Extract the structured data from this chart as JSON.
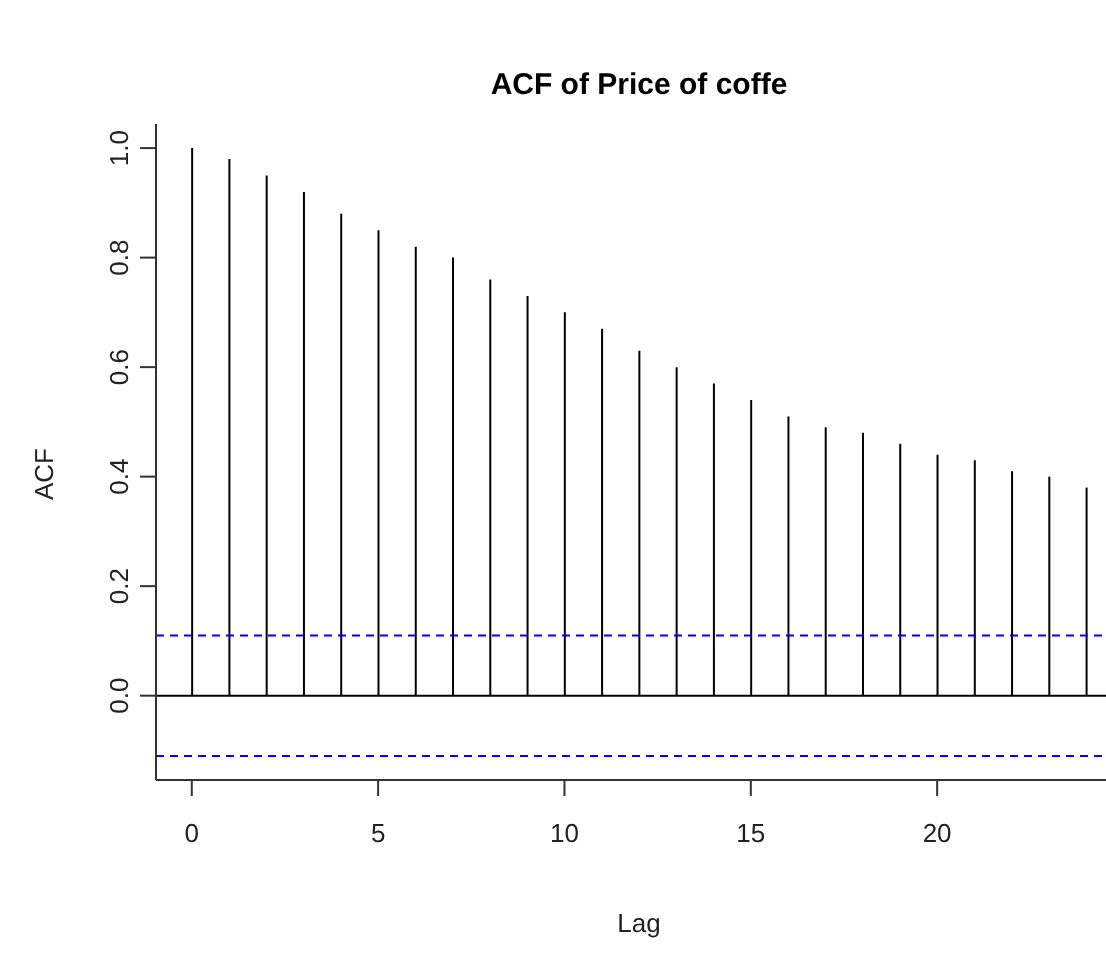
{
  "chart_data": {
    "type": "bar",
    "title": "ACF of Price of coffe",
    "xlabel": "Lag",
    "ylabel": "ACF",
    "x": [
      0,
      1,
      2,
      3,
      4,
      5,
      6,
      7,
      8,
      9,
      10,
      11,
      12,
      13,
      14,
      15,
      16,
      17,
      18,
      19,
      20,
      21,
      22,
      23,
      24
    ],
    "series": [
      {
        "color": "#000000",
        "values": [
          1.0,
          0.98,
          0.95,
          0.92,
          0.88,
          0.85,
          0.82,
          0.8,
          0.76,
          0.73,
          0.7,
          0.67,
          0.63,
          0.6,
          0.57,
          0.54,
          0.51,
          0.49,
          0.48,
          0.46,
          0.44,
          0.43,
          0.41,
          0.4,
          0.38
        ]
      }
    ],
    "xlim": [
      -0.96,
      24.96
    ],
    "xticks": [
      0,
      5,
      10,
      15,
      20
    ],
    "ylim": [
      -0.154,
      1.044
    ],
    "yticks": [
      {
        "value": 0,
        "label": "0.0"
      },
      {
        "value": 0.2,
        "label": "0.2"
      },
      {
        "value": 0.4,
        "label": "0.4"
      },
      {
        "value": 0.6,
        "label": "0.6"
      },
      {
        "value": 0.8,
        "label": "0.8"
      },
      {
        "value": 1,
        "label": "1.0"
      }
    ],
    "ref_lines": [
      {
        "axis": "y",
        "value": 0,
        "color": "#000000",
        "line_style": "solid"
      },
      {
        "axis": "y",
        "value": 0.11,
        "color": "#0000ff",
        "line_style": "dashed"
      },
      {
        "axis": "y",
        "value": -0.11,
        "color": "#0000ff",
        "line_style": "dashed"
      }
    ],
    "grid": false,
    "legend": false
  }
}
